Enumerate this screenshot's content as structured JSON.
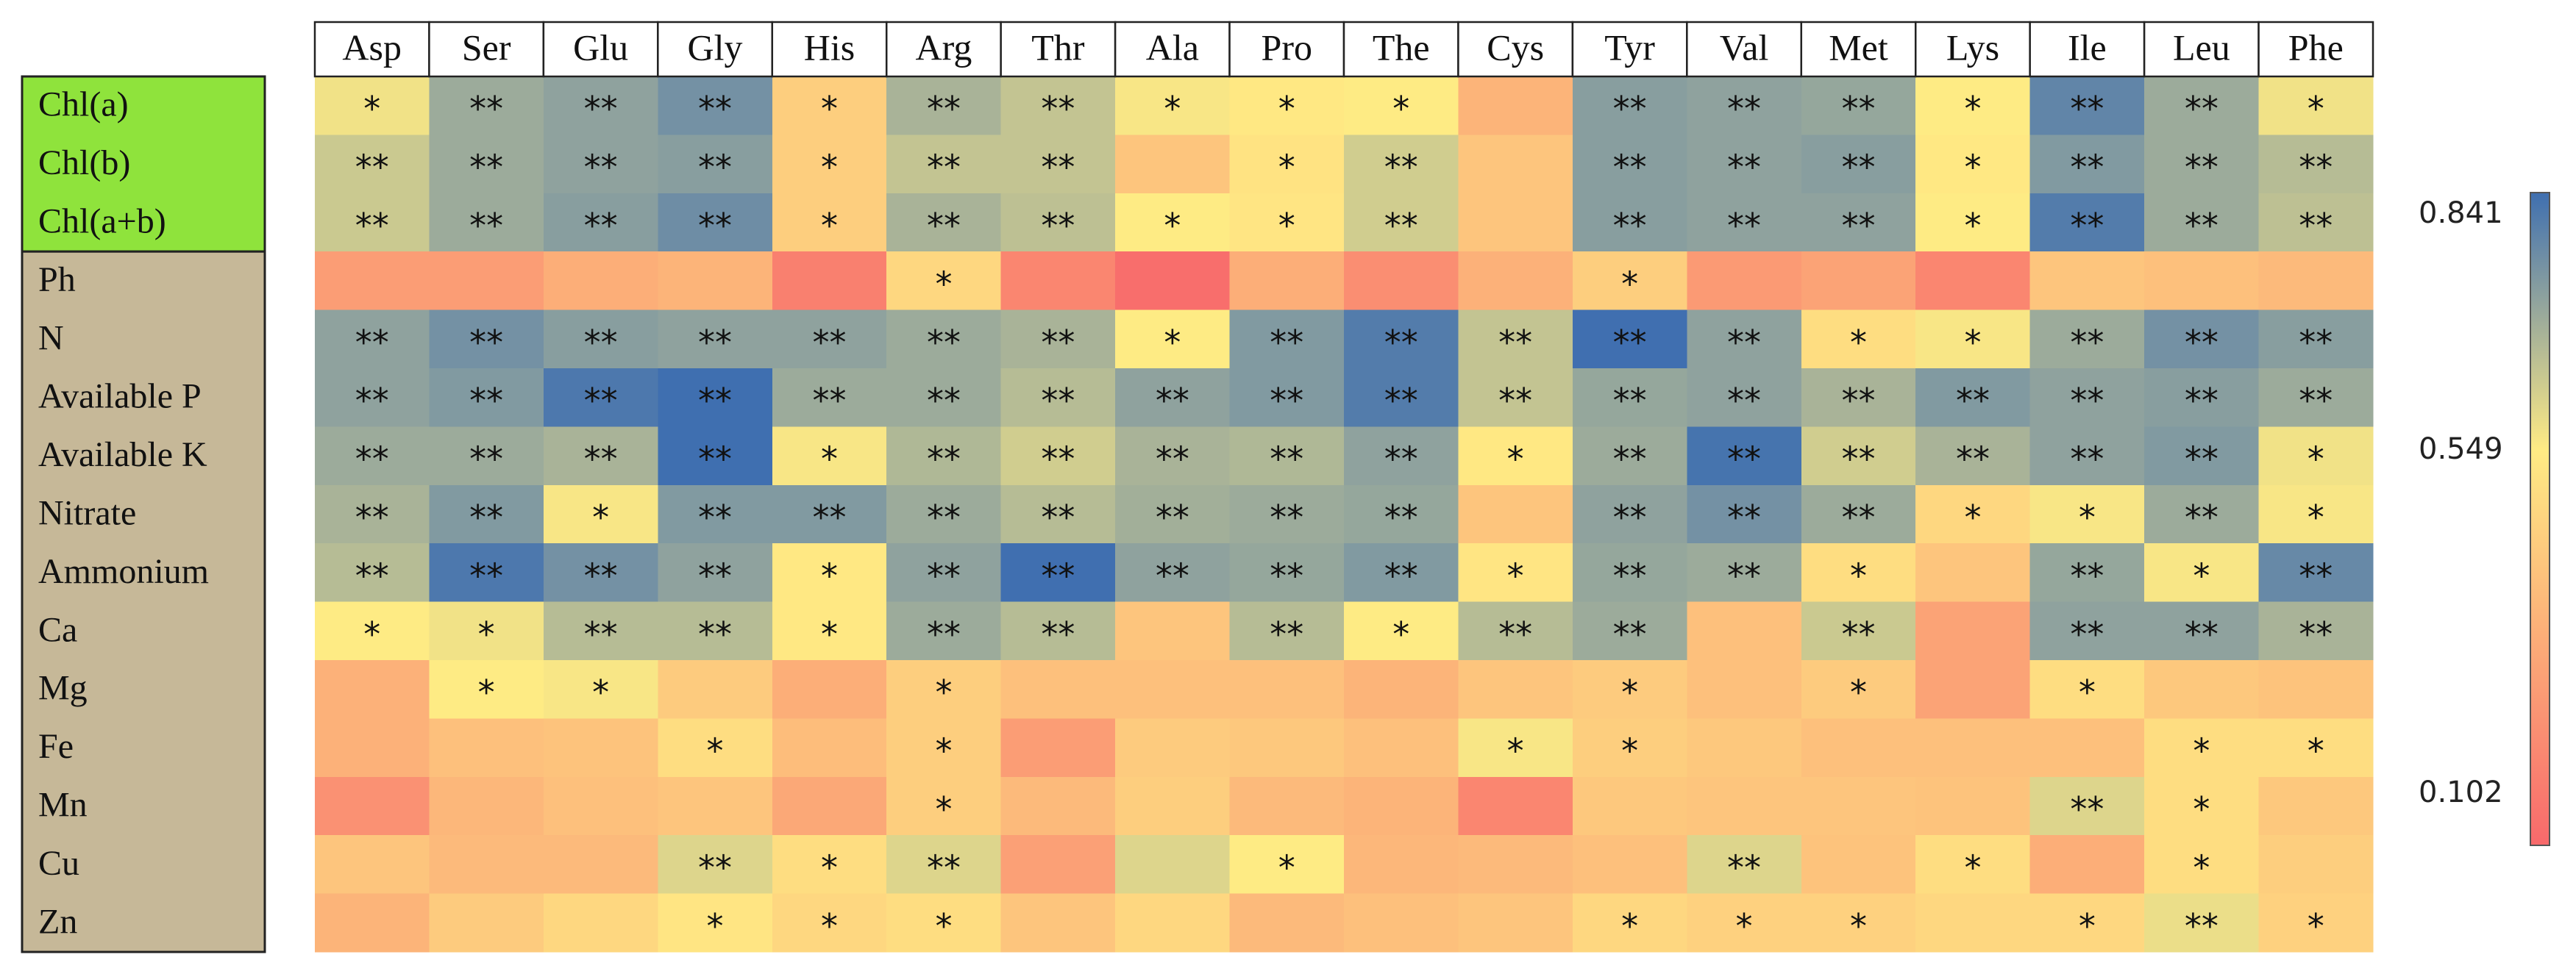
{
  "chart_data": {
    "type": "heatmap",
    "columns": [
      "Asp",
      "Ser",
      "Glu",
      "Gly",
      "His",
      "Arg",
      "Thr",
      "Ala",
      "Pro",
      "The",
      "Cys",
      "Tyr",
      "Val",
      "Met",
      "Lys",
      "Ile",
      "Leu",
      "Phe"
    ],
    "rows": [
      "Chl(a)",
      "Chl(b)",
      "Chl(a+b)",
      "Ph",
      "N",
      "Available P",
      "Available K",
      "Nitrate",
      "Ammonium",
      "Ca",
      "Mg",
      "Fe",
      "Mn",
      "Cu",
      "Zn"
    ],
    "row_groups": [
      {
        "rows": [
          "Chl(a)",
          "Chl(b)",
          "Chl(a+b)"
        ],
        "color": "#8fe33c"
      },
      {
        "rows": [
          "Ph",
          "N",
          "Available P",
          "Available K",
          "Nitrate",
          "Ammonium",
          "Ca",
          "Mg",
          "Fe",
          "Mn",
          "Cu",
          "Zn"
        ],
        "color": "#c6b898"
      }
    ],
    "values": [
      [
        0.57,
        0.7,
        0.72,
        0.76,
        0.45,
        0.68,
        0.64,
        0.56,
        0.54,
        0.55,
        0.36,
        0.73,
        0.72,
        0.71,
        0.55,
        0.79,
        0.7,
        0.57
      ],
      [
        0.63,
        0.7,
        0.72,
        0.73,
        0.45,
        0.64,
        0.64,
        0.42,
        0.52,
        0.62,
        0.42,
        0.73,
        0.72,
        0.73,
        0.54,
        0.74,
        0.7,
        0.66
      ],
      [
        0.63,
        0.7,
        0.73,
        0.77,
        0.45,
        0.68,
        0.65,
        0.55,
        0.53,
        0.62,
        0.42,
        0.73,
        0.72,
        0.72,
        0.55,
        0.81,
        0.7,
        0.65
      ],
      [
        0.28,
        0.28,
        0.34,
        0.36,
        0.18,
        0.48,
        0.2,
        0.12,
        0.34,
        0.23,
        0.35,
        0.45,
        0.27,
        0.3,
        0.2,
        0.42,
        0.4,
        0.38
      ],
      [
        0.72,
        0.76,
        0.73,
        0.72,
        0.72,
        0.7,
        0.68,
        0.55,
        0.74,
        0.81,
        0.64,
        0.84,
        0.72,
        0.5,
        0.56,
        0.7,
        0.76,
        0.73
      ],
      [
        0.72,
        0.74,
        0.82,
        0.85,
        0.7,
        0.7,
        0.66,
        0.72,
        0.74,
        0.81,
        0.64,
        0.71,
        0.72,
        0.68,
        0.74,
        0.72,
        0.73,
        0.7
      ],
      [
        0.7,
        0.7,
        0.68,
        0.85,
        0.56,
        0.67,
        0.62,
        0.68,
        0.67,
        0.72,
        0.54,
        0.7,
        0.83,
        0.62,
        0.68,
        0.72,
        0.74,
        0.57
      ],
      [
        0.68,
        0.74,
        0.56,
        0.74,
        0.74,
        0.7,
        0.66,
        0.69,
        0.7,
        0.71,
        0.42,
        0.72,
        0.76,
        0.7,
        0.48,
        0.56,
        0.7,
        0.56
      ],
      [
        0.66,
        0.82,
        0.76,
        0.72,
        0.54,
        0.72,
        0.84,
        0.72,
        0.71,
        0.74,
        0.53,
        0.71,
        0.7,
        0.5,
        0.42,
        0.71,
        0.56,
        0.78
      ],
      [
        0.55,
        0.57,
        0.66,
        0.66,
        0.54,
        0.7,
        0.66,
        0.42,
        0.66,
        0.55,
        0.66,
        0.7,
        0.4,
        0.63,
        0.3,
        0.72,
        0.72,
        0.68
      ],
      [
        0.35,
        0.55,
        0.56,
        0.44,
        0.34,
        0.45,
        0.4,
        0.4,
        0.4,
        0.36,
        0.42,
        0.44,
        0.4,
        0.44,
        0.3,
        0.5,
        0.43,
        0.41
      ],
      [
        0.35,
        0.4,
        0.41,
        0.5,
        0.39,
        0.45,
        0.28,
        0.44,
        0.43,
        0.4,
        0.56,
        0.45,
        0.43,
        0.4,
        0.4,
        0.4,
        0.5,
        0.5
      ],
      [
        0.24,
        0.37,
        0.4,
        0.42,
        0.32,
        0.45,
        0.38,
        0.45,
        0.38,
        0.36,
        0.2,
        0.43,
        0.42,
        0.42,
        0.41,
        0.6,
        0.5,
        0.43
      ],
      [
        0.42,
        0.38,
        0.38,
        0.6,
        0.5,
        0.6,
        0.29,
        0.6,
        0.55,
        0.37,
        0.38,
        0.4,
        0.6,
        0.41,
        0.5,
        0.34,
        0.5,
        0.45
      ],
      [
        0.36,
        0.44,
        0.48,
        0.53,
        0.48,
        0.5,
        0.42,
        0.48,
        0.38,
        0.4,
        0.42,
        0.48,
        0.46,
        0.46,
        0.48,
        0.48,
        0.58,
        0.46
      ]
    ],
    "significance": [
      [
        "*",
        "**",
        "**",
        "**",
        "*",
        "**",
        "**",
        "*",
        "*",
        "*",
        "",
        "**",
        "**",
        "**",
        "*",
        "**",
        "**",
        "*"
      ],
      [
        "**",
        "**",
        "**",
        "**",
        "*",
        "**",
        "**",
        "",
        "*",
        "**",
        "",
        "**",
        "**",
        "**",
        "*",
        "**",
        "**",
        "**"
      ],
      [
        "**",
        "**",
        "**",
        "**",
        "*",
        "**",
        "**",
        "*",
        "*",
        "**",
        "",
        "**",
        "**",
        "**",
        "*",
        "**",
        "**",
        "**"
      ],
      [
        "",
        "",
        "",
        "",
        "",
        "*",
        "",
        "",
        "",
        "",
        "",
        "*",
        "",
        "",
        "",
        "",
        "",
        ""
      ],
      [
        "**",
        "**",
        "**",
        "**",
        "**",
        "**",
        "**",
        "*",
        "**",
        "**",
        "**",
        "**",
        "**",
        "*",
        "*",
        "**",
        "**",
        "**"
      ],
      [
        "**",
        "**",
        "**",
        "**",
        "**",
        "**",
        "**",
        "**",
        "**",
        "**",
        "**",
        "**",
        "**",
        "**",
        "**",
        "**",
        "**",
        "**"
      ],
      [
        "**",
        "**",
        "**",
        "**",
        "*",
        "**",
        "**",
        "**",
        "**",
        "**",
        "*",
        "**",
        "**",
        "**",
        "**",
        "**",
        "**",
        "*"
      ],
      [
        "**",
        "**",
        "*",
        "**",
        "**",
        "**",
        "**",
        "**",
        "**",
        "**",
        "",
        "**",
        "**",
        "**",
        "*",
        "*",
        "**",
        "*"
      ],
      [
        "**",
        "**",
        "**",
        "**",
        "*",
        "**",
        "**",
        "**",
        "**",
        "**",
        "*",
        "**",
        "**",
        "*",
        "",
        "**",
        "*",
        "**"
      ],
      [
        "*",
        "*",
        "**",
        "**",
        "*",
        "**",
        "**",
        "",
        "**",
        "*",
        "**",
        "**",
        "",
        "**",
        "",
        "**",
        "**",
        "**"
      ],
      [
        "",
        "*",
        "*",
        "",
        "",
        "*",
        "",
        "",
        "",
        "",
        "",
        "*",
        "",
        "*",
        "",
        "*",
        "",
        ""
      ],
      [
        "",
        "",
        "",
        "*",
        "",
        "*",
        "",
        "",
        "",
        "",
        "*",
        "*",
        "",
        "",
        "",
        "",
        "*",
        "*"
      ],
      [
        "",
        "",
        "",
        "",
        "",
        "*",
        "",
        "",
        "",
        "",
        "",
        "",
        "",
        "",
        "",
        "**",
        "*",
        ""
      ],
      [
        "",
        "",
        "",
        "**",
        "*",
        "**",
        "",
        "",
        "*",
        "",
        "",
        "",
        "**",
        "",
        "*",
        "",
        "*",
        ""
      ],
      [
        "",
        "",
        "",
        "*",
        "*",
        "*",
        "",
        "",
        "",
        "",
        "",
        "*",
        "*",
        "*",
        "",
        "*",
        "**",
        "*"
      ]
    ],
    "colorbar": {
      "min": 0.102,
      "mid": 0.549,
      "max": 0.841,
      "tick_labels": [
        "0.841",
        "0.549",
        "0.102"
      ],
      "colors": {
        "low": "#f8696b",
        "mid": "#ffeb84",
        "high": "#3f6fb0"
      }
    }
  }
}
